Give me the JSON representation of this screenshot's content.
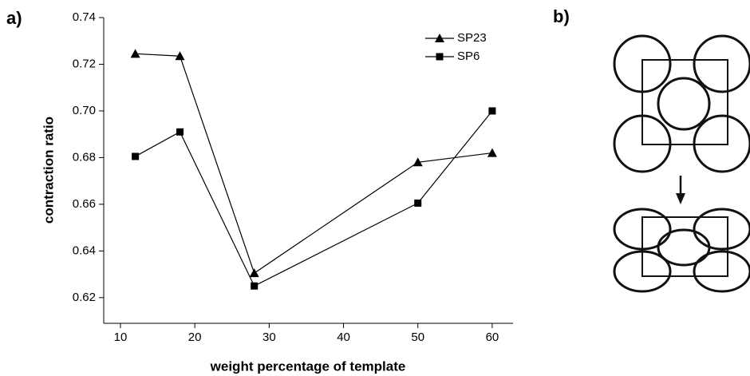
{
  "chart_data": {
    "type": "line",
    "panel_labels": [
      "a)",
      "b)"
    ],
    "x_label": "weight percentage of template",
    "y_label": "contraction ratio",
    "x": [
      12,
      18,
      28,
      50,
      60
    ],
    "series": [
      {
        "name": "SP23",
        "color": "#000000",
        "marker": "triangle",
        "values": [
          0.7245,
          0.7235,
          0.6305,
          0.678,
          0.682
        ]
      },
      {
        "name": "SP6",
        "color": "#000000",
        "marker": "square",
        "values": [
          0.6805,
          0.691,
          0.625,
          0.6605,
          0.7
        ]
      }
    ],
    "xlim": [
      7.75,
      62.8
    ],
    "xticks": [
      10,
      20,
      30,
      40,
      50,
      60
    ],
    "ylim": [
      0.609,
      0.74
    ],
    "yticks": [
      {
        "value": 0.62,
        "label": "0.62"
      },
      {
        "value": 0.64,
        "label": "0.64"
      },
      {
        "value": 0.66,
        "label": "0.66"
      },
      {
        "value": 0.68,
        "label": "0.68"
      },
      {
        "value": 0.7,
        "label": "0.70"
      },
      {
        "value": 0.72,
        "label": "0.72"
      },
      {
        "value": 0.74,
        "label": "0.74"
      }
    ],
    "legend": "top-right"
  }
}
